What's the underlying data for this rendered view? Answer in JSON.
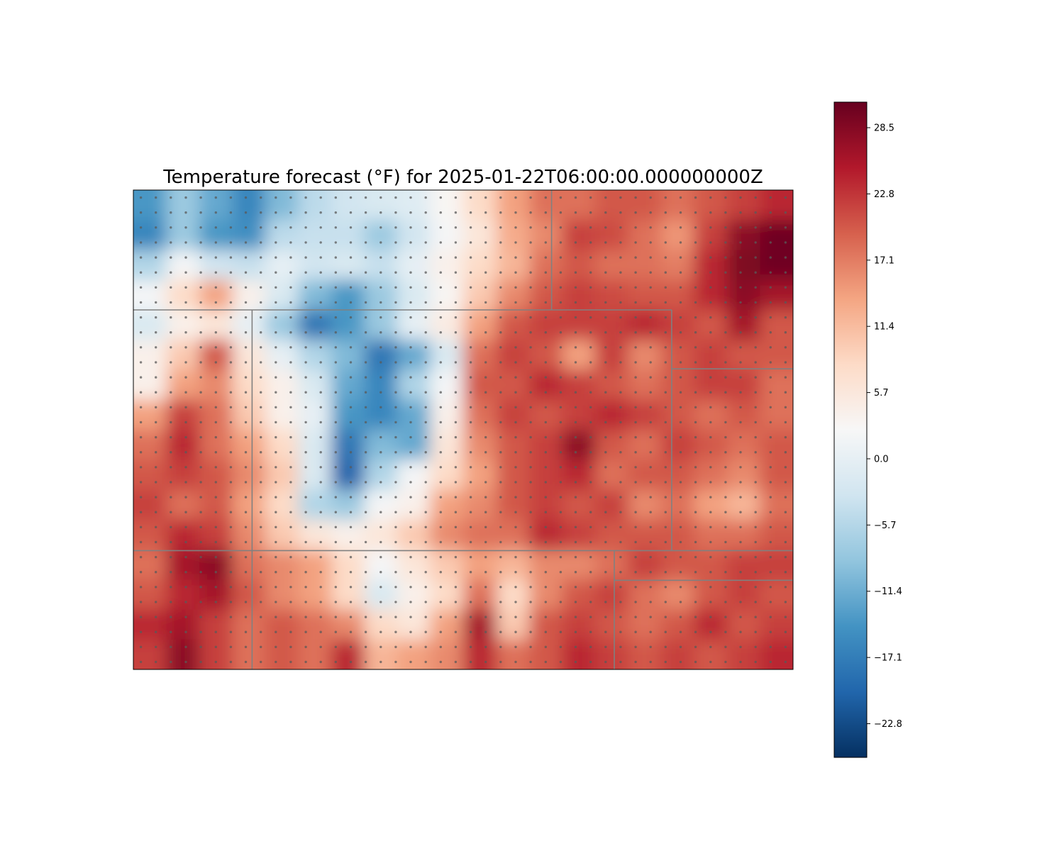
{
  "title": "Temperature forecast (°F) for 2025-01-22T06:00:00.000000000Z",
  "colormap": {
    "name": "RdBu_r",
    "min": -25.7,
    "max": 30.7,
    "stops": [
      "#053061",
      "#2166ac",
      "#4393c3",
      "#92c5de",
      "#d1e5f0",
      "#f7f7f7",
      "#fddbc7",
      "#f4a582",
      "#d6604d",
      "#b2182b",
      "#67001f"
    ]
  },
  "colorbar": {
    "ticks": [
      {
        "value": 28.5,
        "label": "28.5"
      },
      {
        "value": 22.8,
        "label": "22.8"
      },
      {
        "value": 17.1,
        "label": "17.1"
      },
      {
        "value": 11.4,
        "label": "11.4"
      },
      {
        "value": 5.7,
        "label": "5.7"
      },
      {
        "value": 0.0,
        "label": "0.0"
      },
      {
        "value": -5.7,
        "label": "−5.7"
      },
      {
        "value": -11.4,
        "label": "−11.4"
      },
      {
        "value": -17.1,
        "label": "−17.1"
      },
      {
        "value": -22.8,
        "label": "−22.8"
      }
    ]
  },
  "chart_data": {
    "type": "heatmap",
    "title": "Temperature forecast (°F) for 2025-01-22T06:00:00.000000000Z",
    "grid_columns": 20,
    "grid_rows": 16,
    "values": [
      [
        -14,
        -8,
        -12,
        -16,
        -10,
        -5,
        -3,
        -2,
        -1,
        3,
        8,
        14,
        18,
        18,
        20,
        20,
        18,
        20,
        22,
        24
      ],
      [
        -16,
        -8,
        -14,
        -15,
        -5,
        -4,
        -4,
        -8,
        -3,
        2,
        6,
        13,
        16,
        22,
        21,
        18,
        15,
        22,
        28,
        30
      ],
      [
        -6,
        2,
        -3,
        -4,
        0,
        -3,
        -2,
        -4,
        0,
        4,
        8,
        12,
        18,
        20,
        18,
        18,
        17,
        24,
        29,
        30
      ],
      [
        2,
        8,
        14,
        4,
        -2,
        -10,
        -14,
        -8,
        -2,
        3,
        10,
        16,
        20,
        22,
        21,
        20,
        20,
        24,
        28,
        26
      ],
      [
        -2,
        4,
        6,
        0,
        -8,
        -18,
        -14,
        -8,
        0,
        5,
        14,
        20,
        22,
        22,
        22,
        24,
        22,
        20,
        26,
        20
      ],
      [
        4,
        10,
        20,
        6,
        0,
        -6,
        -10,
        -18,
        -12,
        -2,
        18,
        22,
        20,
        14,
        22,
        16,
        20,
        22,
        20,
        20
      ],
      [
        4,
        14,
        16,
        8,
        4,
        -2,
        -12,
        -16,
        -6,
        2,
        20,
        20,
        24,
        22,
        20,
        18,
        20,
        22,
        22,
        18
      ],
      [
        14,
        22,
        18,
        10,
        4,
        0,
        -14,
        -16,
        -12,
        4,
        18,
        22,
        20,
        22,
        24,
        22,
        20,
        18,
        20,
        18
      ],
      [
        18,
        24,
        18,
        14,
        8,
        -2,
        -18,
        -10,
        -12,
        6,
        16,
        20,
        22,
        28,
        20,
        18,
        22,
        20,
        18,
        20
      ],
      [
        20,
        22,
        20,
        16,
        10,
        -2,
        -20,
        -6,
        2,
        8,
        14,
        20,
        22,
        24,
        18,
        20,
        20,
        18,
        16,
        20
      ],
      [
        22,
        18,
        20,
        14,
        8,
        -6,
        -8,
        2,
        4,
        14,
        16,
        20,
        22,
        20,
        22,
        16,
        18,
        14,
        12,
        18
      ],
      [
        20,
        24,
        22,
        16,
        10,
        6,
        4,
        6,
        10,
        16,
        18,
        18,
        24,
        22,
        20,
        20,
        20,
        18,
        18,
        20
      ],
      [
        18,
        26,
        28,
        18,
        16,
        14,
        8,
        2,
        6,
        10,
        14,
        12,
        16,
        16,
        18,
        22,
        20,
        20,
        22,
        22
      ],
      [
        20,
        24,
        26,
        20,
        16,
        14,
        8,
        -2,
        4,
        8,
        18,
        8,
        16,
        20,
        22,
        18,
        16,
        20,
        22,
        20
      ],
      [
        24,
        26,
        22,
        18,
        20,
        18,
        16,
        8,
        6,
        14,
        26,
        10,
        20,
        22,
        20,
        18,
        20,
        24,
        20,
        22
      ],
      [
        22,
        28,
        22,
        18,
        20,
        18,
        24,
        12,
        14,
        16,
        24,
        18,
        20,
        24,
        22,
        20,
        22,
        20,
        22,
        24
      ]
    ],
    "colorbar_ticks": [
      28.5,
      22.8,
      17.1,
      11.4,
      5.7,
      0.0,
      -5.7,
      -11.4,
      -17.1,
      -22.8
    ],
    "colormap": "RdBu_r",
    "vmin": -25.7,
    "vmax": 30.7,
    "station_grid": {
      "columns": 44,
      "rows": 32
    },
    "state_borders": [
      [
        [
          0.0,
          0.25
        ],
        [
          0.355,
          0.25
        ],
        [
          0.816,
          0.25
        ]
      ],
      [
        [
          0.634,
          0.0
        ],
        [
          0.634,
          0.25
        ]
      ],
      [
        [
          0.816,
          0.25
        ],
        [
          0.816,
          0.752
        ]
      ],
      [
        [
          0.18,
          0.25
        ],
        [
          0.18,
          1.0
        ]
      ],
      [
        [
          0.0,
          0.752
        ],
        [
          1.0,
          0.752
        ]
      ],
      [
        [
          0.816,
          0.373
        ],
        [
          1.0,
          0.373
        ]
      ],
      [
        [
          0.729,
          0.752
        ],
        [
          0.729,
          1.0
        ]
      ],
      [
        [
          0.729,
          0.814
        ],
        [
          1.0,
          0.814
        ]
      ]
    ]
  }
}
